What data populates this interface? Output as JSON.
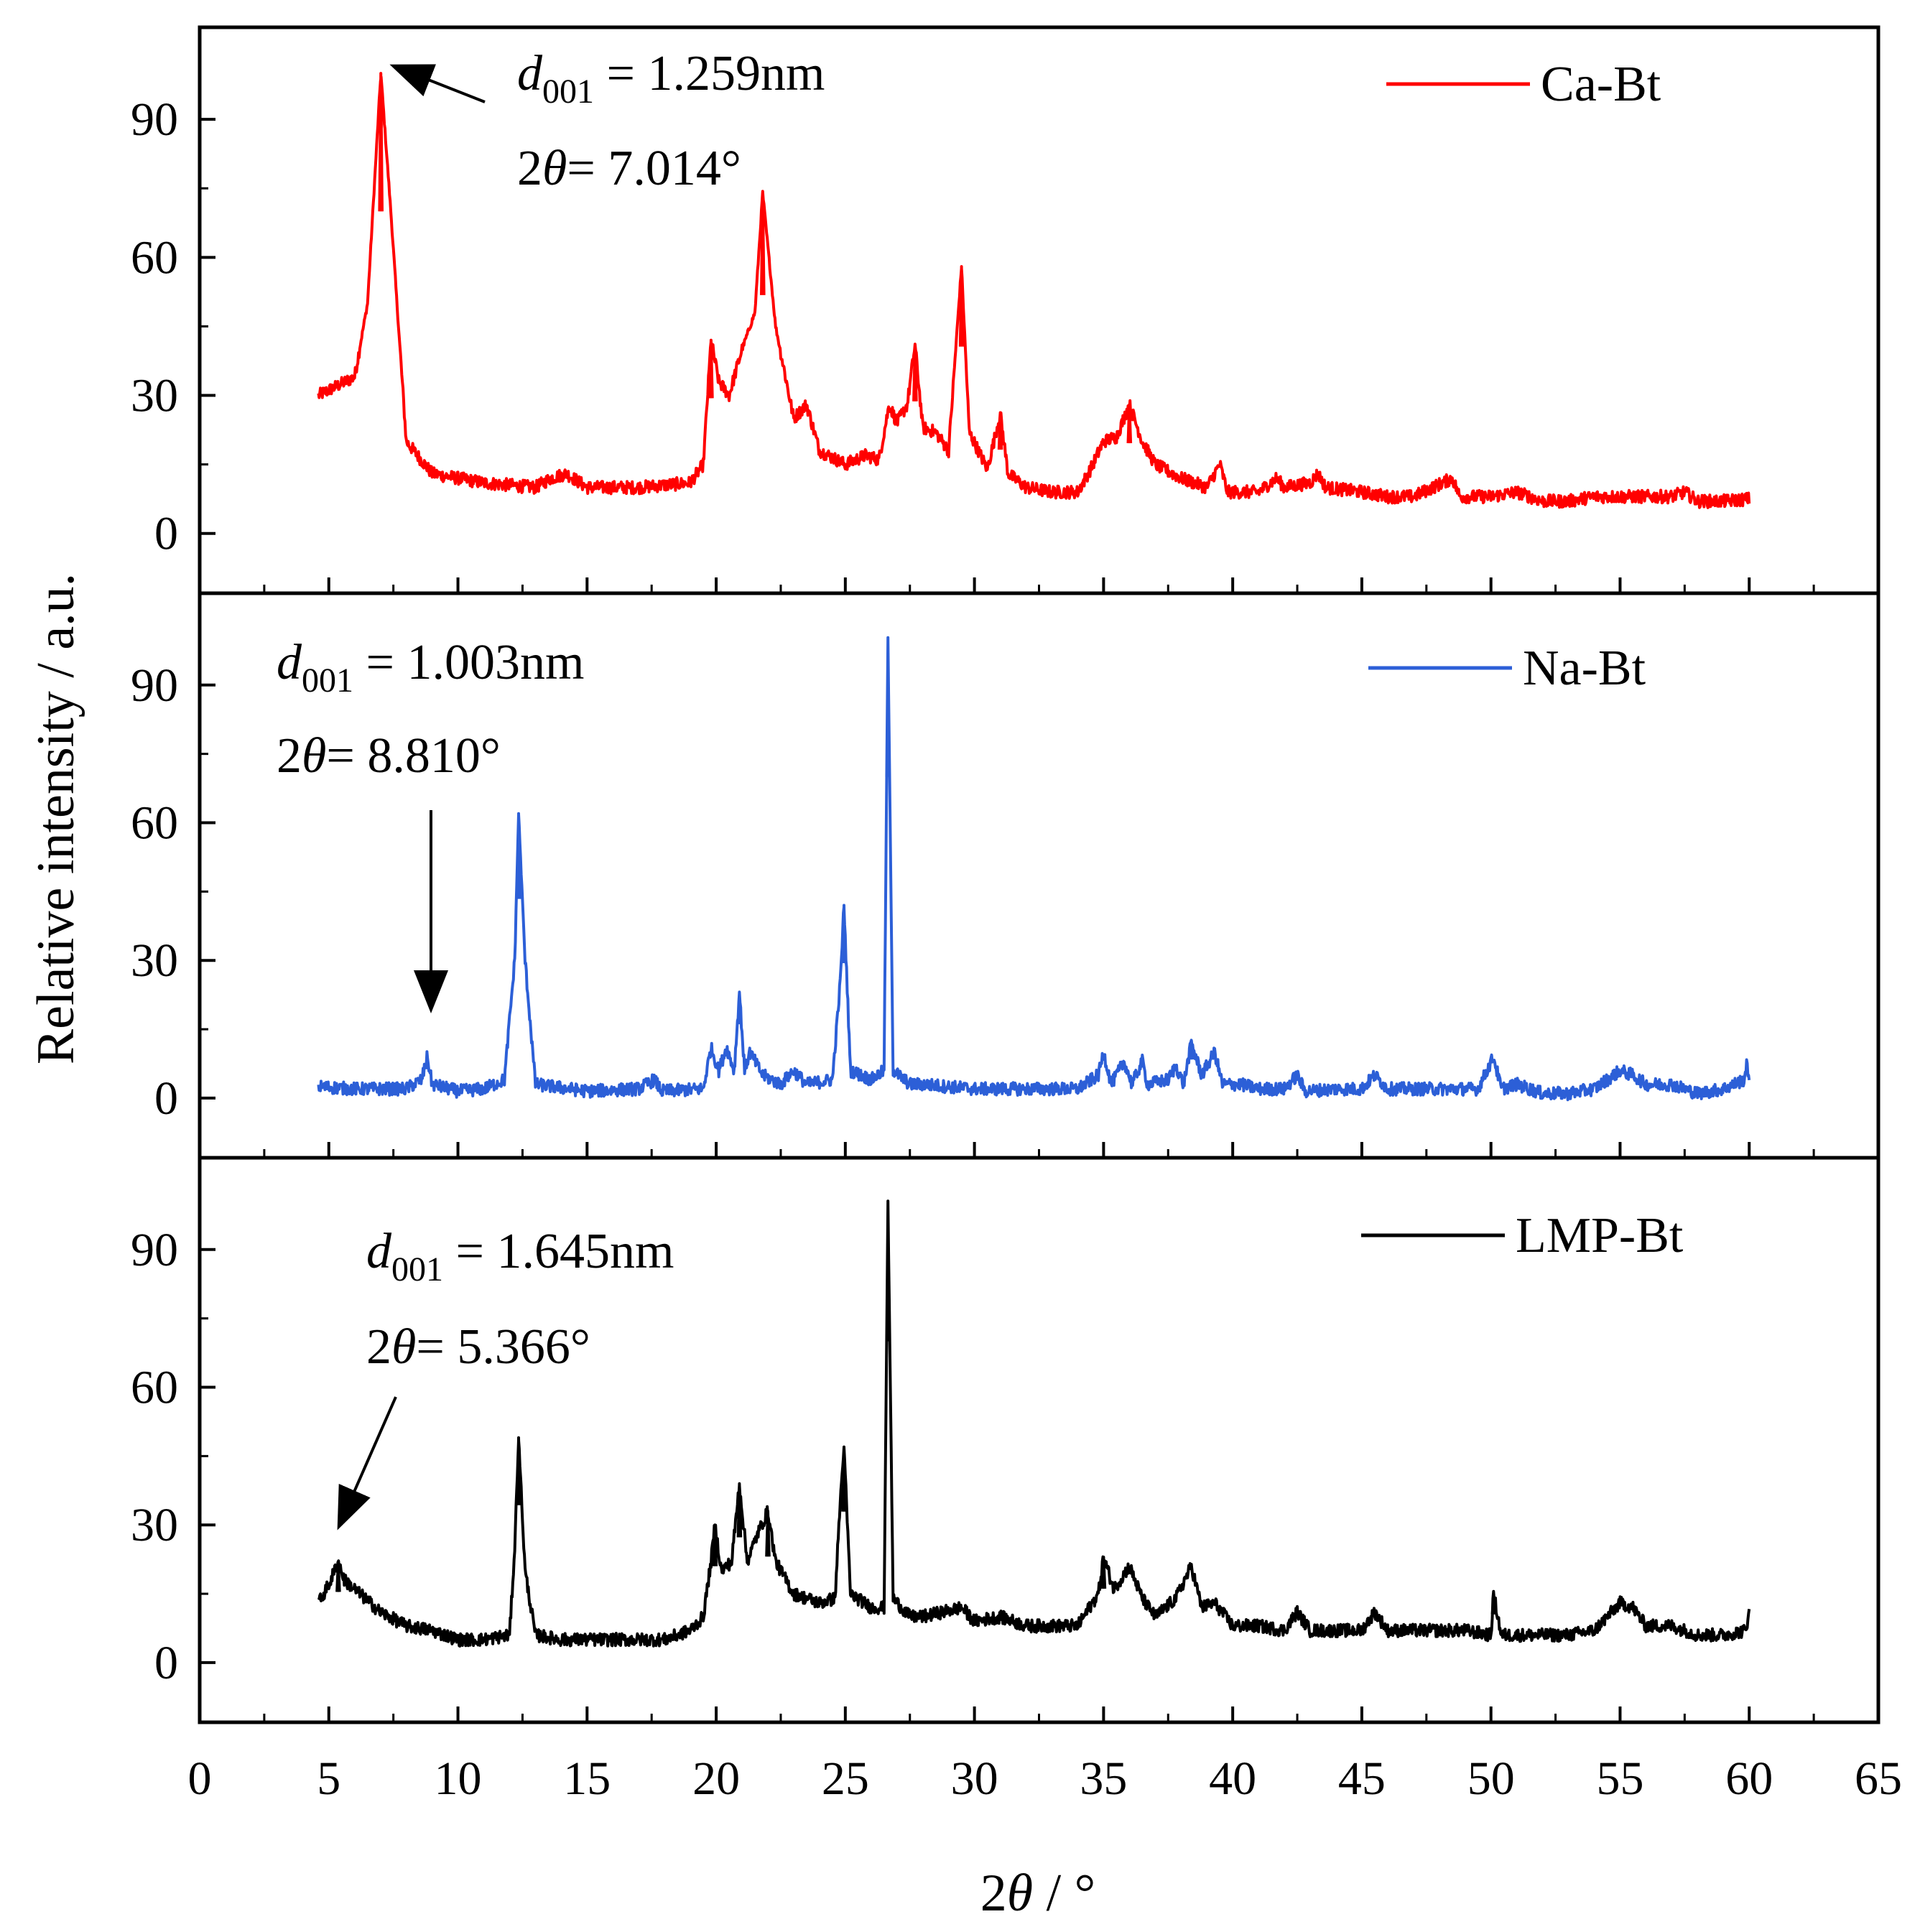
{
  "chart_data": {
    "type": "line",
    "title": "",
    "xlabel": "2θ / °",
    "xlabel_parts": {
      "symbol": "2",
      "theta": "θ",
      "unit": " / °"
    },
    "ylabel": "Relative intensity / a.u.",
    "xlim": [
      0,
      65
    ],
    "x_ticks": [
      "0",
      "5",
      "10",
      "15",
      "20",
      "25",
      "30",
      "35",
      "40",
      "45",
      "50",
      "55",
      "60",
      "65"
    ],
    "y_ticks": [
      "0",
      "30",
      "60",
      "90"
    ],
    "panels": [
      {
        "name": "Ca-Bt",
        "color": "#ff0000",
        "legend": "Ca-Bt",
        "ylim": [
          -13,
          110
        ],
        "annotation": {
          "d_prefix": "d",
          "d_sub": "001",
          "d_value": " = 1.259nm",
          "theta_prefix": "2",
          "theta_symbol": "θ",
          "theta_value": "= 7.014°",
          "peak_x": 7.014,
          "peak_y": 100
        },
        "baseline": [
          [
            4.6,
            30
          ],
          [
            6,
            34
          ],
          [
            6.5,
            50
          ],
          [
            7.014,
            100
          ],
          [
            7.4,
            70
          ],
          [
            8,
            20
          ],
          [
            9,
            13
          ],
          [
            11,
            11
          ],
          [
            13,
            10
          ],
          [
            13.6,
            12
          ],
          [
            14.2,
            13
          ],
          [
            15,
            10
          ],
          [
            17,
            10
          ],
          [
            19,
            11
          ],
          [
            19.5,
            15
          ],
          [
            19.8,
            42
          ],
          [
            20.1,
            33
          ],
          [
            20.5,
            30
          ],
          [
            21,
            40
          ],
          [
            21.5,
            48
          ],
          [
            21.8,
            74
          ],
          [
            22.3,
            45
          ],
          [
            23,
            25
          ],
          [
            23.5,
            28
          ],
          [
            24,
            18
          ],
          [
            25,
            15
          ],
          [
            25.8,
            17
          ],
          [
            26.3,
            16
          ],
          [
            26.7,
            28
          ],
          [
            27,
            24
          ],
          [
            27.4,
            28
          ],
          [
            27.7,
            41
          ],
          [
            28,
            23
          ],
          [
            28.5,
            22
          ],
          [
            29,
            18
          ],
          [
            29.5,
            58
          ],
          [
            29.8,
            22
          ],
          [
            30.5,
            14
          ],
          [
            31,
            26
          ],
          [
            31.3,
            13
          ],
          [
            32,
            10
          ],
          [
            33,
            9
          ],
          [
            34,
            9
          ],
          [
            34.5,
            14
          ],
          [
            35,
            20
          ],
          [
            35.5,
            21
          ],
          [
            36,
            28
          ],
          [
            36.5,
            20
          ],
          [
            37,
            15
          ],
          [
            38,
            12
          ],
          [
            39,
            10
          ],
          [
            39.5,
            15
          ],
          [
            39.8,
            9
          ],
          [
            41,
            9
          ],
          [
            41.7,
            12
          ],
          [
            42,
            10
          ],
          [
            43,
            11
          ],
          [
            43.3,
            13
          ],
          [
            43.6,
            10
          ],
          [
            45,
            9
          ],
          [
            46,
            8
          ],
          [
            47,
            8
          ],
          [
            48.5,
            12
          ],
          [
            48.8,
            8
          ],
          [
            50,
            8
          ],
          [
            51,
            9
          ],
          [
            52,
            7
          ],
          [
            53,
            7
          ],
          [
            54,
            8
          ],
          [
            55,
            8
          ],
          [
            56,
            8
          ],
          [
            57,
            8
          ],
          [
            57.5,
            9
          ],
          [
            58,
            7
          ],
          [
            59,
            7
          ],
          [
            60,
            7.5
          ]
        ],
        "peaks": [
          [
            7.014,
            100
          ],
          [
            21.8,
            74
          ],
          [
            29.5,
            58
          ],
          [
            19.8,
            42
          ],
          [
            27.7,
            41
          ],
          [
            31,
            26
          ],
          [
            36,
            28
          ]
        ]
      },
      {
        "name": "Na-Bt",
        "color": "#2c5fd7",
        "legend": "Na-Bt",
        "ylim": [
          -13,
          110
        ],
        "annotation": {
          "d_prefix": "d",
          "d_sub": "001",
          "d_value": " = 1.003nm",
          "theta_prefix": "2",
          "theta_symbol": "θ",
          "theta_value": "= 8.810°",
          "peak_x": 8.81,
          "peak_y": 9
        },
        "baseline": [
          [
            4.6,
            2.5
          ],
          [
            6,
            2
          ],
          [
            8,
            2
          ],
          [
            8.6,
            4
          ],
          [
            8.81,
            9
          ],
          [
            9,
            3
          ],
          [
            10,
            1.5
          ],
          [
            11,
            2
          ],
          [
            11.8,
            4
          ],
          [
            12.2,
            30
          ],
          [
            12.35,
            62
          ],
          [
            12.6,
            30
          ],
          [
            13,
            3
          ],
          [
            15,
            1.5
          ],
          [
            17,
            2
          ],
          [
            17.6,
            4
          ],
          [
            17.9,
            1.5
          ],
          [
            19.5,
            2
          ],
          [
            19.8,
            11
          ],
          [
            20.1,
            6
          ],
          [
            20.4,
            11
          ],
          [
            20.7,
            6
          ],
          [
            20.9,
            23
          ],
          [
            21.1,
            6
          ],
          [
            21.3,
            10
          ],
          [
            21.8,
            5
          ],
          [
            22.5,
            3
          ],
          [
            23,
            6
          ],
          [
            23.5,
            3
          ],
          [
            24.5,
            4
          ],
          [
            24.8,
            25
          ],
          [
            24.95,
            42
          ],
          [
            25.2,
            6
          ],
          [
            26,
            4
          ],
          [
            26.5,
            6
          ],
          [
            26.65,
            100
          ],
          [
            26.85,
            6
          ],
          [
            27.5,
            3
          ],
          [
            28,
            3
          ],
          [
            30,
            2
          ],
          [
            32,
            2
          ],
          [
            34,
            2
          ],
          [
            34.8,
            5
          ],
          [
            35,
            10
          ],
          [
            35.3,
            3
          ],
          [
            35.8,
            8
          ],
          [
            36.1,
            3
          ],
          [
            36.5,
            8
          ],
          [
            36.7,
            3
          ],
          [
            37.5,
            4
          ],
          [
            37.8,
            7
          ],
          [
            38.1,
            3
          ],
          [
            38.4,
            12
          ],
          [
            38.8,
            5
          ],
          [
            39.3,
            10
          ],
          [
            39.6,
            3
          ],
          [
            40.3,
            3
          ],
          [
            41,
            2
          ],
          [
            42,
            2
          ],
          [
            42.5,
            5
          ],
          [
            42.8,
            1.5
          ],
          [
            44,
            2
          ],
          [
            45,
            2
          ],
          [
            45.5,
            5
          ],
          [
            46,
            2
          ],
          [
            47,
            2
          ],
          [
            48,
            2
          ],
          [
            49.5,
            2
          ],
          [
            50.1,
            9
          ],
          [
            50.4,
            2
          ],
          [
            51,
            3
          ],
          [
            52,
            1
          ],
          [
            53,
            1
          ],
          [
            54,
            2
          ],
          [
            55,
            6
          ],
          [
            55.5,
            5
          ],
          [
            56,
            3
          ],
          [
            57,
            3
          ],
          [
            58,
            1
          ],
          [
            59,
            2
          ],
          [
            59.8,
            4
          ],
          [
            59.9,
            7
          ],
          [
            60,
            5
          ]
        ],
        "peaks": [
          [
            26.65,
            100
          ],
          [
            12.35,
            62
          ],
          [
            24.95,
            42
          ],
          [
            20.9,
            23
          ],
          [
            38.4,
            12
          ],
          [
            8.81,
            9
          ]
        ]
      },
      {
        "name": "LMP-Bt",
        "color": "#000000",
        "legend": "LMP-Bt",
        "ylim": [
          -13,
          110
        ],
        "annotation": {
          "d_prefix": "d",
          "d_sub": "001",
          "d_value": " = 1.645nm",
          "theta_prefix": "2",
          "theta_symbol": "θ",
          "theta_value": "= 5.366°",
          "peak_x": 5.366,
          "peak_y": 22
        },
        "baseline": [
          [
            4.6,
            13
          ],
          [
            5,
            17
          ],
          [
            5.366,
            22
          ],
          [
            5.6,
            18
          ],
          [
            6,
            16
          ],
          [
            7,
            11
          ],
          [
            8,
            8
          ],
          [
            9,
            7
          ],
          [
            10,
            5
          ],
          [
            11,
            5
          ],
          [
            12,
            6
          ],
          [
            12.2,
            25
          ],
          [
            12.35,
            49
          ],
          [
            12.6,
            20
          ],
          [
            13,
            6
          ],
          [
            14,
            5
          ],
          [
            16,
            5
          ],
          [
            18,
            5
          ],
          [
            19,
            7
          ],
          [
            19.5,
            10
          ],
          [
            19.8,
            22
          ],
          [
            19.95,
            30
          ],
          [
            20.2,
            20
          ],
          [
            20.6,
            22
          ],
          [
            20.9,
            39
          ],
          [
            21.2,
            22
          ],
          [
            21.6,
            28
          ],
          [
            22,
            33
          ],
          [
            22.3,
            22
          ],
          [
            23,
            15
          ],
          [
            24,
            13
          ],
          [
            24.6,
            14
          ],
          [
            24.8,
            35
          ],
          [
            24.95,
            47
          ],
          [
            25.2,
            15
          ],
          [
            26,
            12
          ],
          [
            26.5,
            12
          ],
          [
            26.65,
            100
          ],
          [
            26.85,
            14
          ],
          [
            27.5,
            10
          ],
          [
            28,
            10
          ],
          [
            29.5,
            12
          ],
          [
            30,
            9
          ],
          [
            31,
            10
          ],
          [
            32,
            8
          ],
          [
            33,
            8
          ],
          [
            34,
            8
          ],
          [
            34.8,
            15
          ],
          [
            35,
            23
          ],
          [
            35.4,
            16
          ],
          [
            36,
            21
          ],
          [
            36.5,
            14
          ],
          [
            37,
            10
          ],
          [
            37.8,
            14
          ],
          [
            38.4,
            21
          ],
          [
            38.8,
            12
          ],
          [
            39.3,
            13
          ],
          [
            40,
            8
          ],
          [
            41,
            8
          ],
          [
            42,
            7
          ],
          [
            42.5,
            11
          ],
          [
            43,
            7
          ],
          [
            44,
            7
          ],
          [
            45,
            7
          ],
          [
            45.5,
            11
          ],
          [
            46,
            7
          ],
          [
            47,
            7
          ],
          [
            48,
            7
          ],
          [
            49,
            7
          ],
          [
            50,
            6
          ],
          [
            50.1,
            15
          ],
          [
            50.4,
            6
          ],
          [
            51,
            6
          ],
          [
            52,
            6
          ],
          [
            53,
            6
          ],
          [
            54,
            7
          ],
          [
            55,
            13
          ],
          [
            55.5,
            12
          ],
          [
            56,
            8
          ],
          [
            57,
            8
          ],
          [
            58,
            6
          ],
          [
            59,
            6
          ],
          [
            59.9,
            7
          ],
          [
            60,
            13
          ]
        ],
        "peaks": [
          [
            26.65,
            100
          ],
          [
            12.35,
            49
          ],
          [
            24.95,
            47
          ],
          [
            20.9,
            39
          ],
          [
            22,
            33
          ],
          [
            19.95,
            30
          ],
          [
            35,
            23
          ],
          [
            5.366,
            22
          ],
          [
            50.1,
            15
          ]
        ]
      }
    ]
  }
}
